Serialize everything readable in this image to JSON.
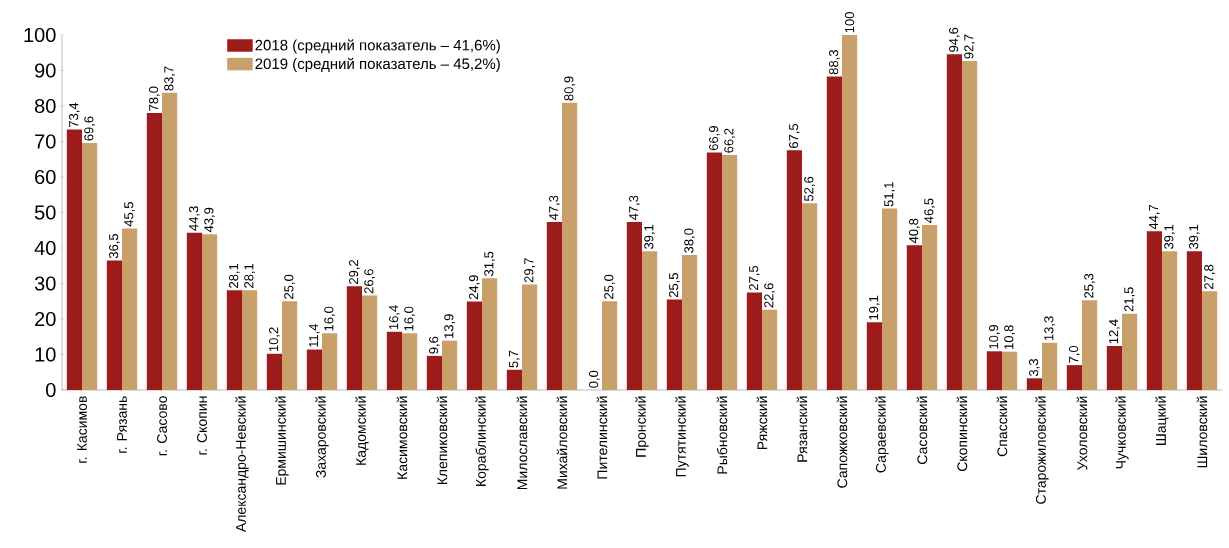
{
  "chart_data": {
    "type": "bar",
    "categories": [
      "г. Касимов",
      "г. Рязань",
      "г. Сасово",
      "г. Скопин",
      "Александро-Невский",
      "Ермишинский",
      "Захаровский",
      "Кадомский",
      "Касимовский",
      "Клепиковский",
      "Кораблинский",
      "Милославский",
      "Михайловский",
      "Пителинский",
      "Пронский",
      "Путятинский",
      "Рыбновский",
      "Ряжский",
      "Рязанский",
      "Сапожковский",
      "Сараевский",
      "Сасовский",
      "Скопинский",
      "Спасский",
      "Старожиловский",
      "Ухоловский",
      "Чучковский",
      "Шацкий",
      "Шиловский"
    ],
    "series": [
      {
        "name": "2018 (средний показатель – 41,6%)",
        "color": "#9e1b1b",
        "values": [
          73.4,
          36.5,
          78.0,
          44.3,
          28.1,
          10.2,
          11.4,
          29.2,
          16.4,
          9.6,
          24.9,
          5.7,
          47.3,
          0.0,
          47.3,
          25.5,
          66.9,
          27.5,
          67.5,
          88.3,
          19.1,
          40.8,
          94.6,
          10.9,
          3.3,
          7.0,
          12.4,
          44.7,
          39.1
        ],
        "value_labels": [
          "73,4",
          "36,5",
          "78,0",
          "44,3",
          "28,1",
          "10,2",
          "11,4",
          "29,2",
          "16,4",
          "9,6",
          "24,9",
          "5,7",
          "47,3",
          "0,0",
          "47,3",
          "25,5",
          "66,9",
          "27,5",
          "67,5",
          "88,3",
          "19,1",
          "40,8",
          "94,6",
          "10,9",
          "3,3",
          "7,0",
          "12,4",
          "44,7",
          "39,1"
        ]
      },
      {
        "name": "2019 (средний показатель – 45,2%)",
        "color": "#c9a06a",
        "values": [
          69.6,
          45.5,
          83.7,
          43.9,
          28.1,
          25.0,
          16.0,
          26.6,
          16.0,
          13.9,
          31.5,
          29.7,
          80.9,
          25.0,
          39.1,
          38.0,
          66.2,
          22.6,
          52.6,
          100,
          51.1,
          46.5,
          92.7,
          10.8,
          13.3,
          25.3,
          21.5,
          39.1,
          27.8
        ],
        "value_labels": [
          "69,6",
          "45,5",
          "83,7",
          "43,9",
          "28,1",
          "25,0",
          "16,0",
          "26,6",
          "16,0",
          "13,9",
          "31,5",
          "29,7",
          "80,9",
          "25,0",
          "39,1",
          "38,0",
          "66,2",
          "22,6",
          "52,6",
          "100",
          "51,1",
          "46,5",
          "92,7",
          "10,8",
          "13,3",
          "25,3",
          "21,5",
          "39,1",
          "27,8"
        ]
      }
    ],
    "ylim": [
      0,
      100
    ],
    "yticks": [
      0,
      10,
      20,
      30,
      40,
      50,
      60,
      70,
      80,
      90,
      100
    ],
    "grid": false,
    "legend": "top"
  }
}
